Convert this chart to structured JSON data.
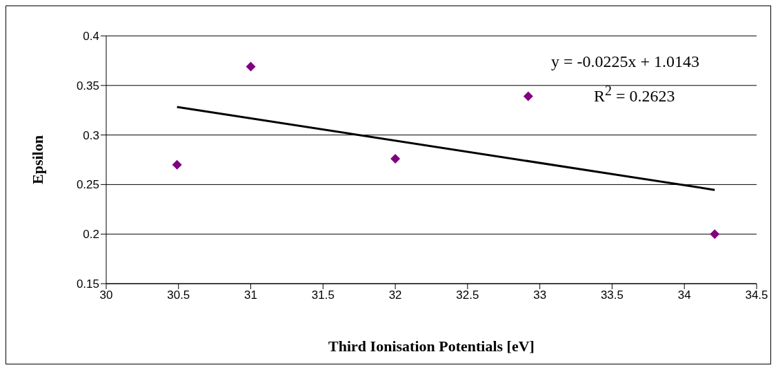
{
  "chart_data": {
    "type": "scatter",
    "xlabel": "Third Ionisation Potentials [eV]",
    "ylabel": "Epsilon",
    "series": [
      {
        "color": "#800080",
        "marker": "diamond",
        "x": [
          30.49,
          31.0,
          32.0,
          32.92,
          34.21
        ],
        "values": [
          0.27,
          0.369,
          0.276,
          0.339,
          0.2
        ]
      },
      {
        "type": "line",
        "color": "#000000",
        "marker": "none",
        "line_style": "solid",
        "x": [
          30.49,
          34.21
        ],
        "values": [
          0.3283,
          0.2446
        ]
      }
    ],
    "annotations": [
      "y = -0.0225x + 1.0143",
      "R$^{2}$ = 0.2623"
    ],
    "xlim": [
      30,
      34.5
    ],
    "xticks": [
      30,
      30.5,
      31,
      31.5,
      32,
      32.5,
      33,
      33.5,
      34,
      34.5
    ],
    "ylim": [
      0.15,
      0.4
    ],
    "yticks": [
      0.15,
      0.2,
      0.25,
      0.3,
      0.35,
      0.4
    ],
    "grid": "y",
    "legend": false
  }
}
